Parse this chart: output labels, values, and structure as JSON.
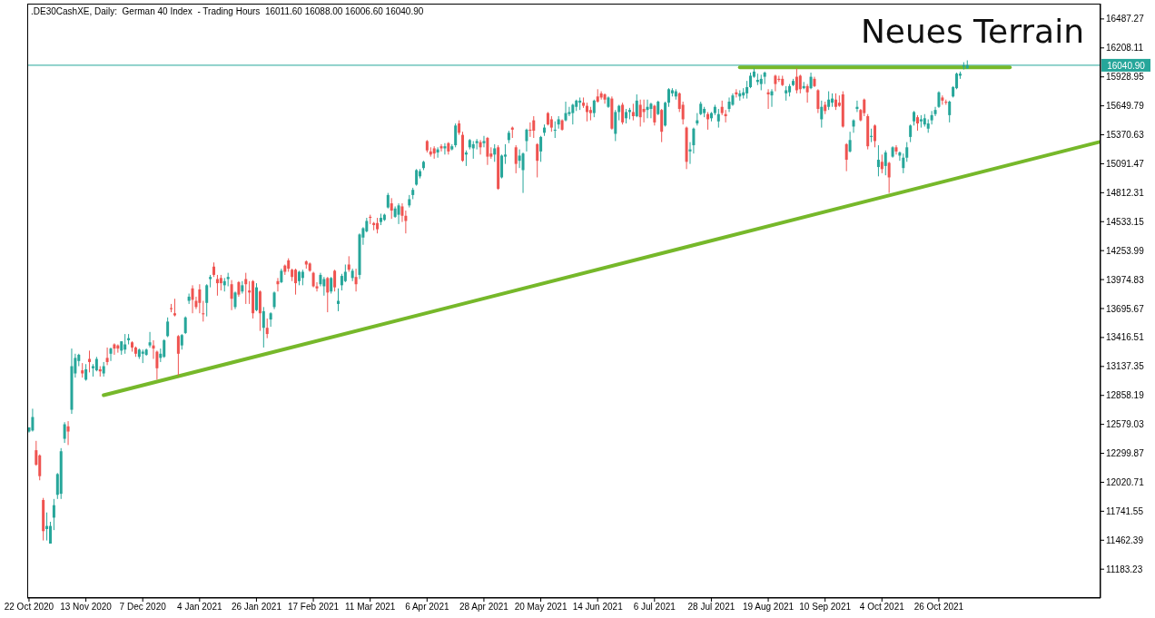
{
  "chart_data": {
    "type": "candlestick",
    "title": "Neues Terrain",
    "subtitle": ".DE30CashXE, Daily:  German 40 Index  - Trading Hours  16011.60 16088.00 16006.60 16040.90",
    "categories": [
      "22 Oct 2020",
      null,
      null,
      null,
      null,
      null,
      null,
      null,
      null,
      null,
      null,
      null,
      null,
      null,
      null,
      null,
      "13 Nov 2020",
      null,
      null,
      null,
      null,
      null,
      null,
      null,
      null,
      null,
      null,
      null,
      null,
      null,
      null,
      null,
      "7 Dec 2020",
      null,
      null,
      null,
      null,
      null,
      null,
      null,
      null,
      null,
      null,
      null,
      null,
      null,
      null,
      null,
      "4 Jan 2021",
      null,
      null,
      null,
      null,
      null,
      null,
      null,
      null,
      null,
      null,
      null,
      null,
      null,
      null,
      null,
      "26 Jan 2021",
      null,
      null,
      null,
      null,
      null,
      null,
      null,
      null,
      null,
      null,
      null,
      null,
      null,
      null,
      null,
      "17 Feb 2021",
      null,
      null,
      null,
      null,
      null,
      null,
      null,
      null,
      null,
      null,
      null,
      null,
      null,
      null,
      null,
      "11 Mar 2021",
      null,
      null,
      null,
      null,
      null,
      null,
      null,
      null,
      null,
      null,
      null,
      null,
      null,
      null,
      null,
      "6 Apr 2021",
      null,
      null,
      null,
      null,
      null,
      null,
      null,
      null,
      null,
      null,
      null,
      null,
      null,
      null,
      null,
      "28 Apr 2021",
      null,
      null,
      null,
      null,
      null,
      null,
      null,
      null,
      null,
      null,
      null,
      null,
      null,
      null,
      null,
      "20 May 2021",
      null,
      null,
      null,
      null,
      null,
      null,
      null,
      null,
      null,
      null,
      null,
      null,
      null,
      null,
      null,
      "14 Jun 2021",
      null,
      null,
      null,
      null,
      null,
      null,
      null,
      null,
      null,
      null,
      null,
      null,
      null,
      null,
      null,
      "6 Jul 2021",
      null,
      null,
      null,
      null,
      null,
      null,
      null,
      null,
      null,
      null,
      null,
      null,
      null,
      null,
      null,
      "28 Jul 2021",
      null,
      null,
      null,
      null,
      null,
      null,
      null,
      null,
      null,
      null,
      null,
      null,
      null,
      null,
      null,
      "19 Aug 2021",
      null,
      null,
      null,
      null,
      null,
      null,
      null,
      null,
      null,
      null,
      null,
      null,
      null,
      null,
      null,
      "10 Sep 2021",
      null,
      null,
      null,
      null,
      null,
      null,
      null,
      null,
      null,
      null,
      null,
      null,
      null,
      null,
      null,
      "4 Oct 2021",
      null,
      null,
      null,
      null,
      null,
      null,
      null,
      null,
      null,
      null,
      null,
      null,
      null,
      null,
      null,
      "26 Oct 2021",
      null,
      null,
      null,
      null,
      null,
      null,
      null,
      null,
      null,
      null,
      null,
      null,
      null,
      null,
      null,
      null,
      null,
      null,
      null,
      null,
      null,
      null,
      null,
      null,
      null,
      null,
      null,
      null,
      null,
      null,
      null,
      null,
      null,
      null,
      null,
      null,
      null,
      null,
      null,
      null,
      null,
      null,
      null,
      null,
      null
    ],
    "ohlc": [
      [
        12510,
        12550,
        12500,
        12550
      ],
      [
        12520,
        12730,
        12510,
        12650
      ],
      [
        12330,
        12420,
        12180,
        12190
      ],
      [
        12280,
        12290,
        12040,
        12080
      ],
      [
        11850,
        11870,
        11460,
        11550
      ],
      [
        11570,
        11730,
        11460,
        11600
      ],
      [
        11430,
        11640,
        11430,
        11600
      ],
      [
        11680,
        11860,
        11560,
        11800
      ],
      [
        11900,
        12110,
        11860,
        12100
      ],
      [
        11910,
        12350,
        11860,
        12320
      ],
      [
        12440,
        12600,
        12400,
        12580
      ],
      [
        12560,
        12610,
        12380,
        12510
      ],
      [
        12720,
        13310,
        12680,
        13140
      ],
      [
        13070,
        13260,
        13030,
        13220
      ],
      [
        13190,
        13260,
        13140,
        13250
      ],
      [
        13100,
        13170,
        13030,
        13070
      ],
      [
        13010,
        13160,
        13000,
        13110
      ],
      [
        13210,
        13290,
        13080,
        13180
      ],
      [
        13120,
        13160,
        13040,
        13140
      ],
      [
        13100,
        13230,
        13090,
        13210
      ],
      [
        13110,
        13140,
        13040,
        13090
      ],
      [
        13070,
        13180,
        13040,
        13140
      ],
      [
        13220,
        13320,
        13150,
        13180
      ],
      [
        13260,
        13320,
        13190,
        13310
      ],
      [
        13350,
        13360,
        13250,
        13310
      ],
      [
        13340,
        13350,
        13270,
        13310
      ],
      [
        13290,
        13380,
        13250,
        13380
      ],
      [
        13300,
        13450,
        13260,
        13350
      ],
      [
        13390,
        13450,
        13350,
        13410
      ],
      [
        13370,
        13380,
        13280,
        13320
      ],
      [
        13320,
        13330,
        13230,
        13260
      ],
      [
        13230,
        13310,
        13210,
        13300
      ],
      [
        13260,
        13300,
        13170,
        13280
      ],
      [
        13250,
        13310,
        13240,
        13300
      ],
      [
        13340,
        13470,
        13320,
        13370
      ],
      [
        13340,
        13390,
        13210,
        13310
      ],
      [
        13280,
        13290,
        13010,
        13120
      ],
      [
        13220,
        13310,
        13180,
        13260
      ],
      [
        13230,
        13400,
        13220,
        13390
      ],
      [
        13430,
        13610,
        13420,
        13570
      ],
      [
        13700,
        13740,
        13660,
        13690
      ],
      [
        13650,
        13790,
        13620,
        13630
      ],
      [
        13430,
        13440,
        13050,
        13260
      ],
      [
        13340,
        13450,
        13300,
        13440
      ],
      [
        13460,
        13620,
        13450,
        13610
      ],
      [
        13770,
        13840,
        13740,
        13810
      ],
      [
        13890,
        13920,
        13650,
        13780
      ],
      [
        13770,
        13810,
        13690,
        13710
      ],
      [
        13880,
        13930,
        13650,
        13750
      ],
      [
        13650,
        13770,
        13570,
        13640
      ],
      [
        13750,
        13930,
        13620,
        13920
      ],
      [
        13980,
        14020,
        13900,
        14000
      ],
      [
        14100,
        14140,
        14000,
        14020
      ],
      [
        13980,
        14020,
        13820,
        13940
      ],
      [
        13990,
        14020,
        13870,
        13940
      ],
      [
        13920,
        13990,
        13860,
        13960
      ],
      [
        13980,
        14040,
        13910,
        14000
      ],
      [
        13930,
        13970,
        13680,
        13790
      ],
      [
        13710,
        13860,
        13690,
        13850
      ],
      [
        13950,
        13960,
        13810,
        13830
      ],
      [
        13860,
        13960,
        13840,
        13920
      ],
      [
        13980,
        14040,
        13740,
        13930
      ],
      [
        13870,
        13960,
        13740,
        13850
      ],
      [
        13960,
        13970,
        13600,
        13650
      ],
      [
        13680,
        13940,
        13670,
        13900
      ],
      [
        13860,
        13870,
        13480,
        13650
      ],
      [
        13510,
        13710,
        13320,
        13670
      ],
      [
        13510,
        13600,
        13410,
        13450
      ],
      [
        13590,
        13660,
        13520,
        13650
      ],
      [
        13710,
        13860,
        13690,
        13850
      ],
      [
        13960,
        13990,
        13860,
        13930
      ],
      [
        13950,
        14080,
        13940,
        14060
      ],
      [
        14110,
        14120,
        14020,
        14050
      ],
      [
        14160,
        14180,
        14050,
        14080
      ],
      [
        14070,
        14080,
        13960,
        14000
      ],
      [
        14070,
        14080,
        13830,
        13940
      ],
      [
        13960,
        14060,
        13920,
        14050
      ],
      [
        13990,
        14070,
        13920,
        14050
      ],
      [
        14150,
        14160,
        14080,
        14120
      ],
      [
        14130,
        14140,
        14050,
        14060
      ],
      [
        14040,
        14050,
        13900,
        13910
      ],
      [
        13910,
        13950,
        13860,
        13890
      ],
      [
        13930,
        14040,
        13910,
        14020
      ],
      [
        13910,
        14000,
        13820,
        13980
      ],
      [
        13990,
        14000,
        13660,
        13850
      ],
      [
        13860,
        14000,
        13840,
        13990
      ],
      [
        14060,
        14070,
        13860,
        13900
      ],
      [
        13740,
        13890,
        13670,
        13770
      ],
      [
        13920,
        14030,
        13870,
        14010
      ],
      [
        13960,
        14120,
        13950,
        14050
      ],
      [
        14120,
        14200,
        14050,
        14070
      ],
      [
        13990,
        14080,
        13960,
        14060
      ],
      [
        14000,
        14080,
        13860,
        13930
      ],
      [
        14020,
        14420,
        13980,
        14410
      ],
      [
        14380,
        14480,
        14310,
        14470
      ],
      [
        14440,
        14570,
        14430,
        14540
      ],
      [
        14580,
        14600,
        14510,
        14570
      ],
      [
        14520,
        14530,
        14450,
        14500
      ],
      [
        14520,
        14570,
        14420,
        14460
      ],
      [
        14530,
        14610,
        14500,
        14570
      ],
      [
        14550,
        14610,
        14540,
        14600
      ],
      [
        14670,
        14810,
        14660,
        14790
      ],
      [
        14710,
        14760,
        14560,
        14640
      ],
      [
        14580,
        14680,
        14570,
        14660
      ],
      [
        14600,
        14710,
        14510,
        14690
      ],
      [
        14680,
        14710,
        14530,
        14590
      ],
      [
        14590,
        14640,
        14420,
        14540
      ],
      [
        14690,
        14790,
        14670,
        14750
      ],
      [
        14790,
        14860,
        14750,
        14840
      ],
      [
        14890,
        15040,
        14880,
        15030
      ],
      [
        14970,
        15040,
        14950,
        15020
      ],
      [
        15050,
        15120,
        15030,
        15110
      ],
      [
        15310,
        15320,
        15200,
        15220
      ],
      [
        15210,
        15250,
        15160,
        15180
      ],
      [
        15240,
        15260,
        15140,
        15190
      ],
      [
        15200,
        15250,
        15150,
        15230
      ],
      [
        15260,
        15280,
        15210,
        15240
      ],
      [
        15240,
        15290,
        15180,
        15260
      ],
      [
        15290,
        15300,
        15180,
        15210
      ],
      [
        15230,
        15280,
        15220,
        15260
      ],
      [
        15270,
        15480,
        15250,
        15460
      ],
      [
        15480,
        15510,
        15370,
        15390
      ],
      [
        15370,
        15400,
        15110,
        15120
      ],
      [
        15180,
        15220,
        15070,
        15200
      ],
      [
        15250,
        15330,
        15230,
        15320
      ],
      [
        15240,
        15310,
        15140,
        15280
      ],
      [
        15290,
        15330,
        15230,
        15310
      ],
      [
        15300,
        15320,
        15180,
        15250
      ],
      [
        15290,
        15360,
        15250,
        15310
      ],
      [
        15340,
        15350,
        15080,
        15160
      ],
      [
        15190,
        15250,
        15140,
        15160
      ],
      [
        15180,
        15280,
        15110,
        15240
      ],
      [
        15250,
        15270,
        14840,
        14850
      ],
      [
        14960,
        15180,
        14950,
        15170
      ],
      [
        15160,
        15280,
        15090,
        15180
      ],
      [
        15320,
        15410,
        15290,
        15390
      ],
      [
        15440,
        15450,
        15340,
        15420
      ],
      [
        15250,
        15270,
        15000,
        15090
      ],
      [
        15120,
        15230,
        15050,
        15170
      ],
      [
        15030,
        15200,
        14810,
        15190
      ],
      [
        15310,
        15430,
        15210,
        15420
      ],
      [
        15420,
        15490,
        15350,
        15410
      ],
      [
        15510,
        15550,
        15340,
        15410
      ],
      [
        15280,
        15290,
        14960,
        15120
      ],
      [
        15210,
        15360,
        15110,
        15350
      ],
      [
        15390,
        15470,
        15360,
        15440
      ],
      [
        15580,
        15590,
        15460,
        15470
      ],
      [
        15520,
        15550,
        15400,
        15440
      ],
      [
        15410,
        15500,
        15340,
        15420
      ],
      [
        15470,
        15550,
        15430,
        15520
      ],
      [
        15510,
        15520,
        15410,
        15420
      ],
      [
        15510,
        15690,
        15500,
        15580
      ],
      [
        15570,
        15640,
        15550,
        15590
      ],
      [
        15580,
        15670,
        15470,
        15660
      ],
      [
        15640,
        15710,
        15600,
        15700
      ],
      [
        15680,
        15730,
        15610,
        15700
      ],
      [
        15680,
        15730,
        15630,
        15650
      ],
      [
        15650,
        15680,
        15500,
        15590
      ],
      [
        15610,
        15640,
        15510,
        15580
      ],
      [
        15580,
        15710,
        15540,
        15700
      ],
      [
        15740,
        15810,
        15680,
        15690
      ],
      [
        15770,
        15790,
        15710,
        15730
      ],
      [
        15760,
        15770,
        15670,
        15710
      ],
      [
        15640,
        15740,
        15630,
        15730
      ],
      [
        15720,
        15740,
        15420,
        15430
      ],
      [
        15380,
        15610,
        15310,
        15590
      ],
      [
        15590,
        15660,
        15510,
        15650
      ],
      [
        15660,
        15680,
        15470,
        15490
      ],
      [
        15530,
        15620,
        15480,
        15590
      ],
      [
        15590,
        15630,
        15520,
        15610
      ],
      [
        15590,
        15670,
        15510,
        15550
      ],
      [
        15550,
        15760,
        15540,
        15700
      ],
      [
        15660,
        15710,
        15450,
        15540
      ],
      [
        15620,
        15710,
        15490,
        15590
      ],
      [
        15610,
        15710,
        15530,
        15640
      ],
      [
        15620,
        15680,
        15530,
        15670
      ],
      [
        15650,
        15660,
        15460,
        15490
      ],
      [
        15570,
        15700,
        15560,
        15690
      ],
      [
        15610,
        15620,
        15300,
        15400
      ],
      [
        15460,
        15690,
        15450,
        15680
      ],
      [
        15680,
        15820,
        15640,
        15810
      ],
      [
        15770,
        15820,
        15740,
        15800
      ],
      [
        15740,
        15810,
        15710,
        15790
      ],
      [
        15770,
        15780,
        15590,
        15620
      ],
      [
        15660,
        15690,
        15470,
        15520
      ],
      [
        15440,
        15450,
        15040,
        15110
      ],
      [
        15210,
        15300,
        15090,
        15230
      ],
      [
        15270,
        15440,
        15190,
        15430
      ],
      [
        15480,
        15580,
        15460,
        15510
      ],
      [
        15570,
        15690,
        15560,
        15670
      ],
      [
        15580,
        15640,
        15540,
        15620
      ],
      [
        15570,
        15590,
        15420,
        15520
      ],
      [
        15530,
        15590,
        15500,
        15580
      ],
      [
        15580,
        15660,
        15560,
        15640
      ],
      [
        15500,
        15620,
        15440,
        15570
      ],
      [
        15640,
        15700,
        15560,
        15580
      ],
      [
        15570,
        15610,
        15490,
        15550
      ],
      [
        15620,
        15730,
        15590,
        15690
      ],
      [
        15660,
        15770,
        15650,
        15750
      ],
      [
        15780,
        15810,
        15730,
        15760
      ],
      [
        15740,
        15800,
        15700,
        15770
      ],
      [
        15750,
        15820,
        15720,
        15780
      ],
      [
        15770,
        15890,
        15720,
        15830
      ],
      [
        15830,
        15970,
        15820,
        15940
      ],
      [
        15930,
        16010,
        15920,
        15980
      ],
      [
        15880,
        15960,
        15850,
        15900
      ],
      [
        15860,
        15950,
        15800,
        15910
      ],
      [
        15930,
        15980,
        15860,
        15970
      ],
      [
        15780,
        15810,
        15620,
        15760
      ],
      [
        15750,
        15810,
        15640,
        15790
      ],
      [
        15940,
        15950,
        15790,
        15860
      ],
      [
        15910,
        15940,
        15880,
        15900
      ],
      [
        15910,
        15940,
        15840,
        15850
      ],
      [
        15770,
        15840,
        15700,
        15800
      ],
      [
        15780,
        15860,
        15740,
        15840
      ],
      [
        15850,
        15910,
        15840,
        15890
      ],
      [
        15930,
        16010,
        15770,
        15800
      ],
      [
        15940,
        15950,
        15770,
        15810
      ],
      [
        15820,
        15880,
        15810,
        15840
      ],
      [
        15840,
        15860,
        15680,
        15780
      ],
      [
        15820,
        15970,
        15810,
        15930
      ],
      [
        15910,
        15930,
        15830,
        15840
      ],
      [
        15800,
        15810,
        15580,
        15620
      ],
      [
        15520,
        15700,
        15440,
        15640
      ],
      [
        15660,
        15690,
        15570,
        15600
      ],
      [
        15640,
        15790,
        15610,
        15710
      ],
      [
        15680,
        15770,
        15640,
        15720
      ],
      [
        15710,
        15770,
        15610,
        15640
      ],
      [
        15680,
        15750,
        15640,
        15650
      ],
      [
        15760,
        15790,
        15440,
        15450
      ],
      [
        15280,
        15290,
        15020,
        15130
      ],
      [
        15210,
        15400,
        15200,
        15320
      ],
      [
        15450,
        15520,
        15390,
        15510
      ],
      [
        15620,
        15700,
        15590,
        15640
      ],
      [
        15610,
        15620,
        15500,
        15510
      ],
      [
        15710,
        15720,
        15550,
        15580
      ],
      [
        15550,
        15570,
        15230,
        15260
      ],
      [
        15350,
        15430,
        15300,
        15360
      ],
      [
        15460,
        15470,
        15250,
        15310
      ],
      [
        15060,
        15270,
        14970,
        15130
      ],
      [
        15110,
        15180,
        15000,
        15040
      ],
      [
        15070,
        15220,
        14980,
        15200
      ],
      [
        15100,
        15110,
        14810,
        14960
      ],
      [
        15160,
        15260,
        15150,
        15250
      ],
      [
        15250,
        15270,
        15180,
        15210
      ],
      [
        15170,
        15210,
        15120,
        15200
      ],
      [
        15050,
        15190,
        15000,
        15150
      ],
      [
        15150,
        15300,
        15110,
        15250
      ],
      [
        15350,
        15470,
        15300,
        15460
      ],
      [
        15500,
        15600,
        15460,
        15590
      ],
      [
        15540,
        15560,
        15410,
        15480
      ],
      [
        15500,
        15560,
        15440,
        15520
      ],
      [
        15470,
        15570,
        15450,
        15530
      ],
      [
        15430,
        15520,
        15390,
        15480
      ],
      [
        15510,
        15600,
        15470,
        15560
      ],
      [
        15570,
        15640,
        15550,
        15610
      ],
      [
        15640,
        15790,
        15630,
        15780
      ],
      [
        15730,
        15750,
        15660,
        15700
      ],
      [
        15690,
        15710,
        15660,
        15680
      ],
      [
        15560,
        15700,
        15490,
        15690
      ],
      [
        15740,
        15840,
        15730,
        15830
      ],
      [
        15820,
        15970,
        15810,
        15960
      ],
      [
        15940,
        15980,
        15910,
        15960
      ],
      [
        16030,
        16070,
        16000,
        16040
      ],
      [
        16011.6,
        16088,
        16006.6,
        16040.9
      ],
      null,
      null,
      null,
      null,
      null,
      null,
      null,
      null,
      null,
      null,
      null,
      null,
      null,
      null,
      null,
      null,
      null,
      null,
      null,
      null,
      null,
      null,
      null,
      null,
      null,
      null,
      null,
      null,
      null,
      null,
      null,
      null,
      null,
      null,
      null,
      null,
      null
    ],
    "series": [
      {
        "type": "line",
        "color": "#76b82a",
        "values": [
          null,
          null,
          null,
          null,
          null,
          null,
          null,
          null,
          null,
          null,
          null,
          null,
          null,
          null,
          null,
          null,
          null,
          null,
          null,
          null,
          null,
          12860,
          null,
          null,
          null,
          null,
          null,
          null,
          null,
          null,
          null,
          null,
          null,
          null,
          null,
          null,
          null,
          null,
          null,
          null,
          null,
          null,
          null,
          null,
          null,
          null,
          null,
          null,
          null,
          null,
          null,
          null,
          null,
          null,
          null,
          null,
          null,
          null,
          null,
          null,
          null,
          null,
          null,
          null,
          null,
          null,
          null,
          null,
          null,
          null,
          null,
          null,
          null,
          null,
          null,
          null,
          null,
          null,
          null,
          null,
          null,
          null,
          null,
          null,
          null,
          null,
          null,
          null,
          null,
          null,
          null,
          null,
          null,
          null,
          null,
          null,
          null,
          null,
          null,
          null,
          null,
          null,
          null,
          null,
          null,
          null,
          null,
          null,
          null,
          null,
          null,
          null,
          null,
          null,
          null,
          null,
          null,
          null,
          null,
          null,
          null,
          null,
          null,
          null,
          null,
          null,
          null,
          null,
          null,
          null,
          null,
          null,
          null,
          null,
          null,
          null,
          null,
          null,
          null,
          null,
          null,
          null,
          null,
          null,
          null,
          null,
          null,
          null,
          null,
          null,
          null,
          null,
          null,
          null,
          null,
          null,
          null,
          null,
          null,
          null,
          null,
          null,
          null,
          null,
          null,
          null,
          null,
          null,
          null,
          null,
          null,
          null,
          null,
          null,
          null,
          null,
          null,
          null,
          null,
          null,
          null,
          null,
          null,
          null,
          null,
          null,
          null,
          null,
          null,
          null,
          null,
          null,
          null,
          null,
          null,
          null,
          null,
          null,
          null,
          null,
          null,
          null,
          null,
          null,
          null,
          null,
          null,
          null,
          null,
          null,
          null,
          null,
          null,
          null,
          null,
          null,
          null,
          null,
          null,
          null,
          null,
          null,
          null,
          null,
          null,
          null,
          null,
          null,
          null,
          null,
          null,
          null,
          null,
          null,
          null,
          null,
          null,
          null,
          null,
          null,
          null,
          null,
          null,
          null,
          null,
          null,
          null,
          null,
          null,
          null,
          null,
          null,
          null,
          null,
          null,
          null,
          null,
          null,
          null,
          null,
          null,
          null,
          null,
          null,
          null,
          null,
          null,
          null,
          null,
          null,
          null,
          null,
          null,
          null,
          null,
          null,
          null,
          null,
          null,
          null,
          null,
          null,
          null,
          null,
          null,
          null,
          null,
          null,
          null,
          null,
          null,
          null,
          null,
          null,
          null,
          null,
          null,
          null,
          null,
          null,
          null,
          15300
        ]
      },
      {
        "type": "line",
        "color": "#76b82a",
        "values": [
          null,
          null,
          null,
          null,
          null,
          null,
          null,
          null,
          null,
          null,
          null,
          null,
          null,
          null,
          null,
          null,
          null,
          null,
          null,
          null,
          null,
          null,
          null,
          null,
          null,
          null,
          null,
          null,
          null,
          null,
          null,
          null,
          null,
          null,
          null,
          null,
          null,
          null,
          null,
          null,
          null,
          null,
          null,
          null,
          null,
          null,
          null,
          null,
          null,
          null,
          null,
          null,
          null,
          null,
          null,
          null,
          null,
          null,
          null,
          null,
          null,
          null,
          null,
          null,
          null,
          null,
          null,
          null,
          null,
          null,
          null,
          null,
          null,
          null,
          null,
          null,
          null,
          null,
          null,
          null,
          null,
          null,
          null,
          null,
          null,
          null,
          null,
          null,
          null,
          null,
          null,
          null,
          null,
          null,
          null,
          null,
          null,
          null,
          null,
          null,
          null,
          null,
          null,
          null,
          null,
          null,
          null,
          null,
          null,
          null,
          null,
          null,
          null,
          null,
          null,
          null,
          null,
          null,
          null,
          null,
          null,
          null,
          null,
          null,
          null,
          null,
          null,
          null,
          null,
          null,
          null,
          null,
          null,
          null,
          null,
          null,
          null,
          null,
          null,
          null,
          null,
          null,
          null,
          null,
          null,
          null,
          null,
          null,
          null,
          null,
          null,
          null,
          null,
          null,
          null,
          null,
          null,
          null,
          null,
          null,
          null,
          null,
          null,
          null,
          null,
          null,
          null,
          null,
          null,
          null,
          null,
          null,
          null,
          null,
          null,
          null,
          null,
          null,
          null,
          null,
          null,
          null,
          null,
          null,
          null,
          null,
          null,
          null,
          null,
          null,
          null,
          null,
          null,
          null,
          null,
          null,
          null,
          null,
          null,
          null,
          16020,
          null,
          null,
          null,
          null,
          null,
          null,
          null,
          null,
          null,
          null,
          null,
          null,
          null,
          null,
          null,
          null,
          null,
          null,
          null,
          null,
          null,
          null,
          null,
          null,
          null,
          null,
          null,
          null,
          null,
          null,
          null,
          null,
          null,
          null,
          null,
          null,
          null,
          null,
          null,
          null,
          null,
          null,
          null,
          null,
          null,
          null,
          null,
          null,
          null,
          null,
          null,
          null,
          null,
          null,
          null,
          null,
          null,
          null,
          null,
          null,
          null,
          null,
          null,
          null,
          null,
          null,
          null,
          null,
          null,
          null,
          null,
          null,
          null,
          null,
          null,
          16020,
          null,
          null,
          null,
          null,
          null,
          null,
          null,
          null,
          null,
          null,
          null,
          null,
          null,
          null,
          null,
          null,
          null,
          null,
          null,
          null,
          null,
          null,
          null,
          null,
          null
        ]
      }
    ],
    "ref_lines": [
      {
        "axis": "y",
        "value": 16040.9,
        "label": "16040.90",
        "color": "#26a69a"
      }
    ],
    "ylim": [
      10905,
      16635
    ],
    "yticks": [
      11183.23,
      11462.39,
      11741.55,
      12020.71,
      12299.87,
      12579.03,
      12858.19,
      13137.35,
      13416.51,
      13695.67,
      13974.83,
      14253.99,
      14533.15,
      14812.31,
      15091.47,
      15370.63,
      15649.79,
      15928.95,
      16208.11,
      16487.27
    ]
  }
}
